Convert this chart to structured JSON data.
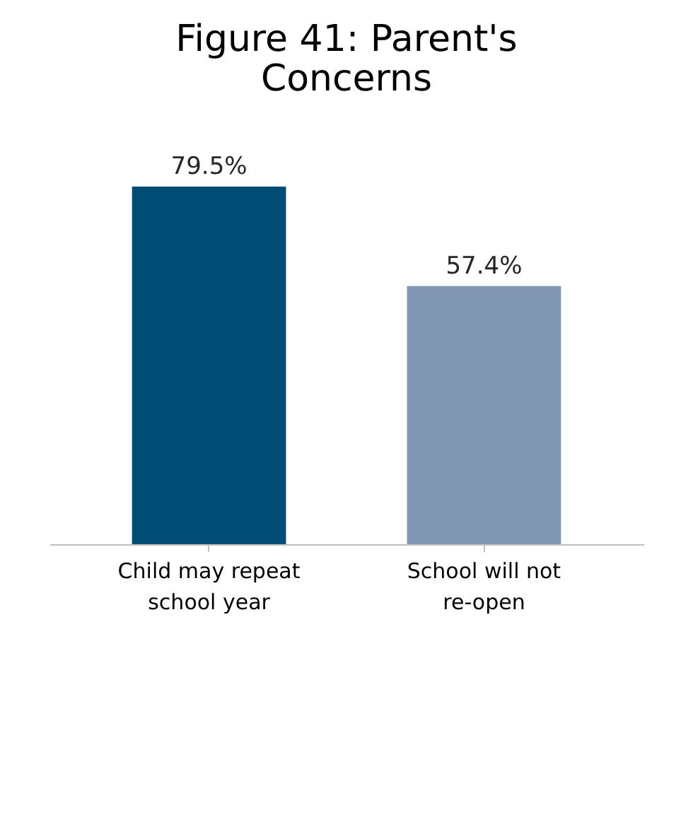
{
  "chart_data": {
    "type": "bar",
    "title": "Figure 41: Parent's Concerns",
    "categories": [
      "Child may repeat school year",
      "School will not re-open"
    ],
    "values": [
      79.5,
      57.4
    ],
    "colors": [
      "#004c76",
      "#8096b2"
    ],
    "value_labels": [
      "79.5%",
      "57.4%"
    ]
  }
}
